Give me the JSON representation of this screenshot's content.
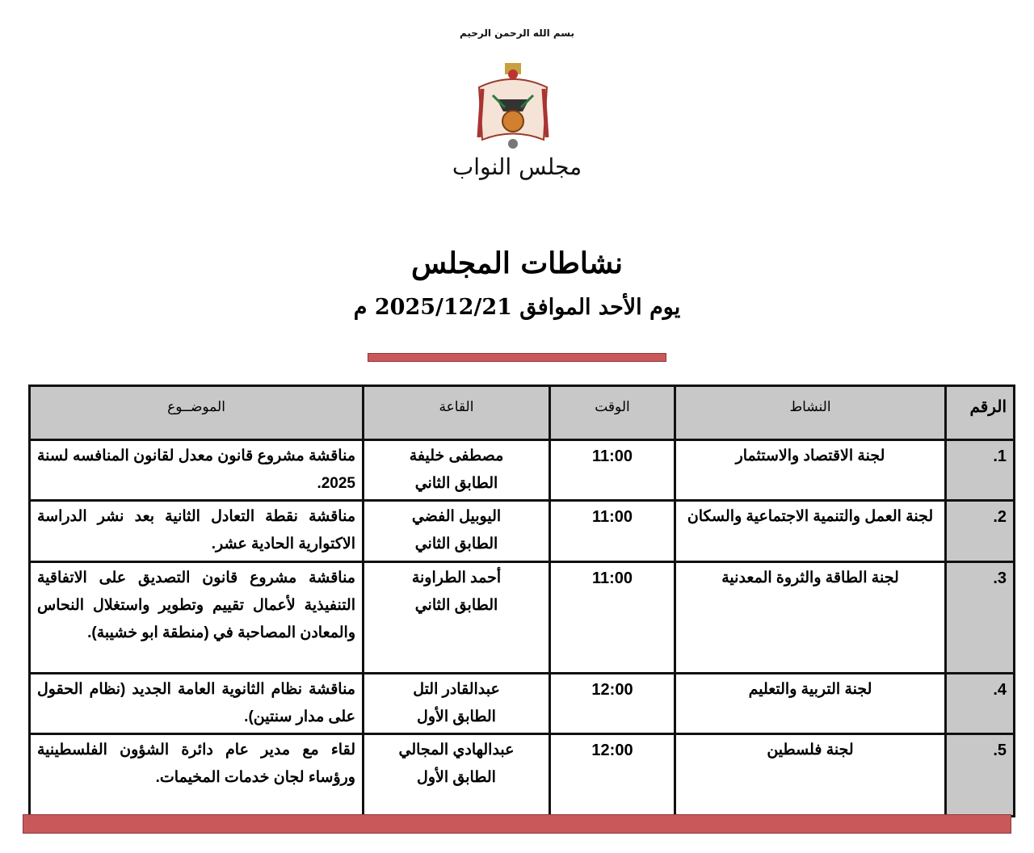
{
  "header": {
    "basmala": "بسم الله الرحمن الرحيم",
    "logo_text": "مجلس النواب",
    "colors": {
      "accent": "#c9585b",
      "header_fill": "#c8c8c8"
    }
  },
  "title": "نشاطات المجلس",
  "date_line": "يوم الأحد الموافق 2025/12/21 م",
  "table": {
    "headers": {
      "num": "الرقم",
      "activity": "النشاط",
      "time": "الوقت",
      "hall": "القاعة",
      "subject": "الموضــوع"
    },
    "rows": [
      {
        "num": "1.",
        "activity": "لجنة الاقتصاد والاستثمار",
        "time": "11:00",
        "hall": "مصطفى خليفة",
        "floor": "الطابق الثاني",
        "subject": "مناقشة مشروع قانون معدل لقانون المنافسه لسنة 2025."
      },
      {
        "num": "2.",
        "activity": "لجنة العمل والتنمية الاجتماعية والسكان",
        "time": "11:00",
        "hall": "اليوبيل الفضي",
        "floor": "الطابق الثاني",
        "subject": "مناقشة نقطة التعادل الثانية بعد نشر الدراسة الاكتوارية الحادية عشر."
      },
      {
        "num": "3.",
        "activity": "لجنة الطاقة والثروة المعدنية",
        "time": "11:00",
        "hall": "أحمد الطراونة",
        "floor": "الطابق الثاني",
        "subject": "مناقشة مشروع قانون التصديق على الاتفاقية التنفيذية لأعمال تقييم وتطوير واستغلال النحاس والمعادن المصاحبة في (منطقة ابو خشيبة)."
      },
      {
        "num": "4.",
        "activity": "لجنة التربية والتعليم",
        "time": "12:00",
        "hall": "عبدالقادر التل",
        "floor": "الطابق الأول",
        "subject": "مناقشة نظام الثانوية العامة الجديد (نظام الحقول على مدار سنتين)."
      },
      {
        "num": "5.",
        "activity": "لجنة فلسطين",
        "time": "12:00",
        "hall": "عبدالهادي المجالي",
        "floor": "الطابق الأول",
        "subject": "لقاء مع مدير عام دائرة الشؤون الفلسطينية ورؤساء لجان خدمات المخيمات."
      }
    ]
  }
}
